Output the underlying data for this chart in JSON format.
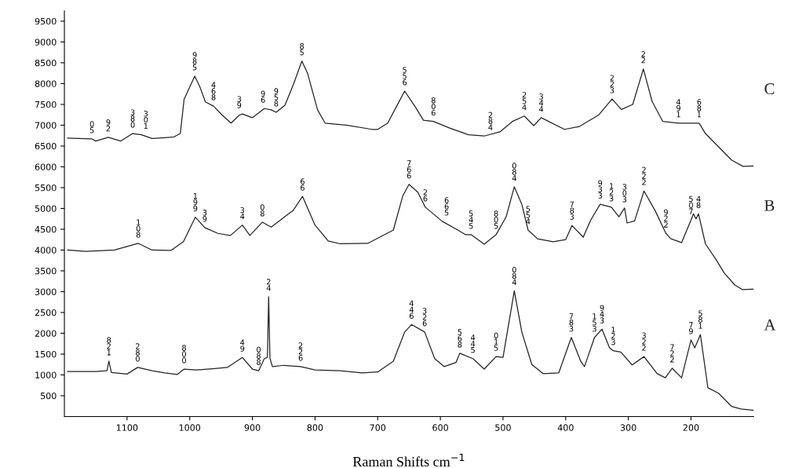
{
  "chart_data": {
    "type": "line",
    "xlabel": "Raman Shifts cm$^{−1}$",
    "xlim": [
      1200,
      100
    ],
    "xticks": [
      1100,
      1000,
      900,
      800,
      700,
      600,
      500,
      400,
      300,
      200
    ],
    "ylim": [
      0,
      9750
    ],
    "yticks": [
      500,
      1000,
      1500,
      2000,
      2500,
      3000,
      3500,
      4000,
      4500,
      5000,
      5500,
      6000,
      6500,
      7000,
      7500,
      8000,
      8500,
      9000,
      9500
    ],
    "grid": false,
    "legend": false,
    "marker": "none",
    "line_style": "solid",
    "series": [
      {
        "name": "C",
        "color": "#222222",
        "x": [
          1195,
          1156,
          1150,
          1130,
          1110,
          1091,
          1077,
          1060,
          1040,
          1025,
          1015,
          1009,
          992,
          984,
          975,
          962,
          948,
          934,
          921,
          916,
          900,
          881,
          870,
          862,
          848,
          834,
          821,
          812,
          796,
          784,
          750,
          709,
          700,
          684,
          670,
          657,
          640,
          627,
          611,
          585,
          555,
          530,
          505,
          485,
          466,
          451,
          439,
          402,
          378,
          347,
          326,
          311,
          293,
          276,
          262,
          245,
          220,
          196,
          187,
          177,
          156,
          135,
          117,
          100
        ],
        "values": [
          6690,
          6670,
          6620,
          6710,
          6620,
          6800,
          6770,
          6680,
          6700,
          6720,
          6800,
          7620,
          8180,
          7930,
          7560,
          7460,
          7240,
          7050,
          7240,
          7270,
          7180,
          7400,
          7370,
          7310,
          7480,
          8000,
          8540,
          8250,
          7370,
          7050,
          7000,
          6900,
          6900,
          7050,
          7450,
          7820,
          7440,
          7120,
          7090,
          6930,
          6770,
          6740,
          6840,
          7090,
          7220,
          6990,
          7180,
          6900,
          6970,
          7250,
          7630,
          7380,
          7500,
          8350,
          7570,
          7090,
          7050,
          7050,
          7050,
          6800,
          6480,
          6160,
          6010,
          6020
        ]
      },
      {
        "name": "B",
        "color": "#222222",
        "x": [
          1195,
          1166,
          1120,
          1082,
          1060,
          1030,
          1010,
          991,
          976,
          955,
          935,
          916,
          904,
          884,
          870,
          850,
          835,
          820,
          800,
          779,
          760,
          716,
          675,
          660,
          650,
          636,
          624,
          597,
          572,
          560,
          551,
          530,
          511,
          495,
          482,
          470,
          460,
          445,
          420,
          400,
          390,
          372,
          360,
          345,
          327,
          315,
          306,
          302,
          290,
          275,
          257,
          240,
          232,
          215,
          200,
          196,
          192,
          188,
          177,
          160,
          147,
          130,
          118,
          100
        ],
        "values": [
          4000,
          3970,
          4000,
          4160,
          4000,
          3990,
          4200,
          4790,
          4540,
          4400,
          4350,
          4600,
          4350,
          4670,
          4550,
          4780,
          4950,
          5290,
          4600,
          4220,
          4150,
          4160,
          4480,
          5300,
          5580,
          5390,
          5030,
          4690,
          4480,
          4370,
          4370,
          4140,
          4370,
          4800,
          5520,
          5100,
          4480,
          4270,
          4200,
          4250,
          4590,
          4310,
          4720,
          5100,
          5030,
          4800,
          5010,
          4650,
          4700,
          5420,
          4940,
          4400,
          4270,
          4180,
          4720,
          4870,
          4750,
          4870,
          4150,
          3770,
          3450,
          3160,
          3050,
          3060
        ]
      },
      {
        "name": "A",
        "color": "#222222",
        "x": [
          1195,
          1150,
          1132,
          1129,
          1125,
          1100,
          1083,
          1060,
          1040,
          1020,
          1009,
          990,
          960,
          940,
          916,
          900,
          890,
          881,
          876,
          874,
          872,
          868,
          850,
          823,
          800,
          760,
          725,
          700,
          675,
          657,
          646,
          625,
          609,
          594,
          575,
          569,
          548,
          530,
          511,
          500,
          482,
          470,
          454,
          436,
          411,
          391,
          376,
          370,
          354,
          342,
          330,
          324,
          312,
          294,
          275,
          254,
          241,
          230,
          215,
          200,
          194,
          185,
          179,
          173,
          156,
          135,
          120,
          100
        ],
        "values": [
          1080,
          1080,
          1100,
          1330,
          1060,
          1020,
          1180,
          1100,
          1050,
          1010,
          1140,
          1120,
          1150,
          1180,
          1420,
          1140,
          1100,
          1390,
          1420,
          2880,
          1400,
          1200,
          1230,
          1200,
          1120,
          1100,
          1050,
          1070,
          1330,
          2030,
          2210,
          2030,
          1390,
          1200,
          1300,
          1520,
          1390,
          1140,
          1440,
          1420,
          3020,
          2030,
          1250,
          1030,
          1050,
          1900,
          1330,
          1200,
          1900,
          2100,
          1650,
          1580,
          1550,
          1240,
          1440,
          1030,
          930,
          1160,
          930,
          1840,
          1650,
          1970,
          1330,
          690,
          560,
          240,
          180,
          150
        ]
      }
    ],
    "annotations": [
      {
        "text": "0\n5",
        "x": 1156,
        "y": 6670
      },
      {
        "text": "9\n2",
        "x": 1130,
        "y": 6710
      },
      {
        "text": "3\n8\n0",
        "x": 1091,
        "y": 6800
      },
      {
        "text": "3\n0\n1",
        "x": 1070,
        "y": 6770
      },
      {
        "text": "9\n8\n5",
        "x": 992,
        "y": 8180
      },
      {
        "text": "4\n6\n8",
        "x": 962,
        "y": 7460
      },
      {
        "text": "3\n9",
        "x": 921,
        "y": 7270
      },
      {
        "text": "9\n6",
        "x": 883,
        "y": 7400
      },
      {
        "text": "9\n5\n8",
        "x": 862,
        "y": 7310
      },
      {
        "text": "8\n5",
        "x": 821,
        "y": 8540
      },
      {
        "text": "5\n5\n6",
        "x": 657,
        "y": 7820
      },
      {
        "text": "8\n0\n6",
        "x": 611,
        "y": 7090
      },
      {
        "text": "2\n8\n4",
        "x": 520,
        "y": 6740
      },
      {
        "text": "2\n5\n4",
        "x": 466,
        "y": 7220
      },
      {
        "text": "3\n4\n4",
        "x": 439,
        "y": 7180
      },
      {
        "text": "2\n2\n3",
        "x": 326,
        "y": 7630
      },
      {
        "text": "2\n2",
        "x": 276,
        "y": 8350
      },
      {
        "text": "4\n9\n1",
        "x": 220,
        "y": 7050
      },
      {
        "text": "6\n8\n1",
        "x": 187,
        "y": 7050
      },
      {
        "text": "1\n0\n8",
        "x": 1082,
        "y": 4160
      },
      {
        "text": "1\n9\n9",
        "x": 991,
        "y": 4790
      },
      {
        "text": "3\n9",
        "x": 976,
        "y": 4540
      },
      {
        "text": "3\n4",
        "x": 916,
        "y": 4600
      },
      {
        "text": "0\n8",
        "x": 884,
        "y": 4670
      },
      {
        "text": "6\n6",
        "x": 820,
        "y": 5290
      },
      {
        "text": "7\n6\n6",
        "x": 650,
        "y": 5580
      },
      {
        "text": "2\n6",
        "x": 624,
        "y": 5030
      },
      {
        "text": "6\n6\n5",
        "x": 590,
        "y": 4690
      },
      {
        "text": "5\n4\n5",
        "x": 551,
        "y": 4370
      },
      {
        "text": "8\n0\n5",
        "x": 511,
        "y": 4370
      },
      {
        "text": "0\n8\n4",
        "x": 482,
        "y": 5520
      },
      {
        "text": "5\n5\n4",
        "x": 460,
        "y": 4480
      },
      {
        "text": "7\n8\n3",
        "x": 390,
        "y": 4590
      },
      {
        "text": "9\n3\n3",
        "x": 345,
        "y": 5100
      },
      {
        "text": "1\n2\n3",
        "x": 327,
        "y": 5030
      },
      {
        "text": "3\n0\n3",
        "x": 306,
        "y": 5010
      },
      {
        "text": "2\n2\n2",
        "x": 275,
        "y": 5420
      },
      {
        "text": "9\n2\n2",
        "x": 240,
        "y": 4400
      },
      {
        "text": "5\n0\n7",
        "x": 200,
        "y": 4720
      },
      {
        "text": "4\n8",
        "x": 188,
        "y": 4870
      },
      {
        "text": "8\n2\n1",
        "x": 1129,
        "y": 1330
      },
      {
        "text": "2\n8\n0",
        "x": 1083,
        "y": 1180
      },
      {
        "text": "8\n0\n0",
        "x": 1009,
        "y": 1140
      },
      {
        "text": "4\n9",
        "x": 916,
        "y": 1420
      },
      {
        "text": "0\n8\n8",
        "x": 890,
        "y": 1100
      },
      {
        "text": "2\n4",
        "x": 874,
        "y": 2880
      },
      {
        "text": "2\n2\n6",
        "x": 823,
        "y": 1200
      },
      {
        "text": "4\n4\n6",
        "x": 646,
        "y": 2210
      },
      {
        "text": "3\n2\n6",
        "x": 625,
        "y": 2030
      },
      {
        "text": "5\n6\n8",
        "x": 569,
        "y": 1520
      },
      {
        "text": "4\n4\n5",
        "x": 548,
        "y": 1390
      },
      {
        "text": "0\n1\n5",
        "x": 511,
        "y": 1440
      },
      {
        "text": "0\n8\n4",
        "x": 482,
        "y": 3020
      },
      {
        "text": "7\n8\n3",
        "x": 391,
        "y": 1900
      },
      {
        "text": "1\n5\n3",
        "x": 354,
        "y": 1900
      },
      {
        "text": "9\n4\n3",
        "x": 342,
        "y": 2100
      },
      {
        "text": "1\n2\n3",
        "x": 324,
        "y": 1580
      },
      {
        "text": "3\n2\n2",
        "x": 275,
        "y": 1440
      },
      {
        "text": "7\n2\n2",
        "x": 230,
        "y": 1160
      },
      {
        "text": "7\n9",
        "x": 200,
        "y": 1840
      },
      {
        "text": "5\n8\n1",
        "x": 185,
        "y": 1970
      }
    ]
  }
}
